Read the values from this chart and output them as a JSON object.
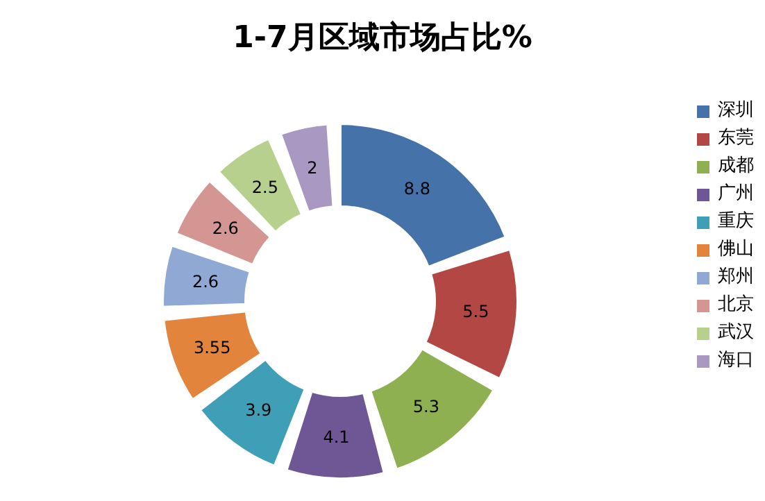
{
  "chart_data": {
    "type": "donut",
    "title": "1-7月区域市场占比%",
    "categories": [
      "深圳",
      "东莞",
      "成都",
      "广州",
      "重庆",
      "佛山",
      "郑州",
      "北京",
      "武汉",
      "海口"
    ],
    "values": [
      8.8,
      5.5,
      5.3,
      4.1,
      3.9,
      3.55,
      2.6,
      2.6,
      2.5,
      2
    ],
    "colors": [
      "#4672aa",
      "#b34744",
      "#8fb050",
      "#6f5795",
      "#3f9fb6",
      "#e3843c",
      "#8fa9d4",
      "#d39693",
      "#b8d08e",
      "#a898c2"
    ],
    "data_labels": true,
    "legend": "right"
  }
}
